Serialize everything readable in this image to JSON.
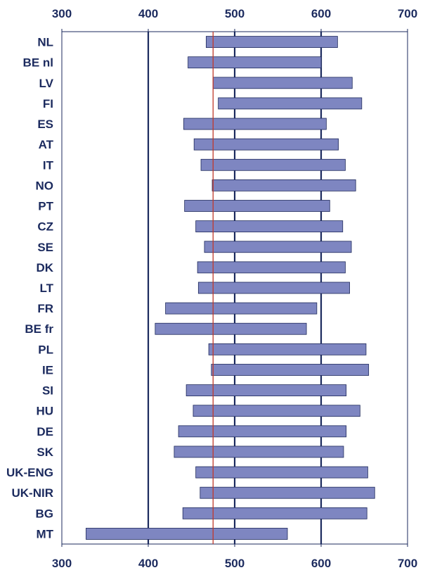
{
  "chart_data": {
    "type": "bar",
    "orientation": "horizontal-range",
    "title": "",
    "xlabel": "",
    "ylabel": "",
    "xlim": [
      300,
      700
    ],
    "xticks": [
      300,
      400,
      500,
      600,
      700
    ],
    "grid": true,
    "reference_line": {
      "value": 475,
      "color": "#c0392b"
    },
    "categories": [
      "NL",
      "BE nl",
      "LV",
      "FI",
      "ES",
      "AT",
      "IT",
      "NO",
      "PT",
      "CZ",
      "SE",
      "DK",
      "LT",
      "FR",
      "BE fr",
      "PL",
      "IE",
      "SI",
      "HU",
      "DE",
      "SK",
      "UK-ENG",
      "UK-NIR",
      "BG",
      "MT"
    ],
    "series": [
      {
        "name": "low",
        "values": [
          467,
          446,
          475,
          481,
          441,
          453,
          461,
          474,
          442,
          455,
          465,
          457,
          458,
          420,
          408,
          470,
          473,
          444,
          452,
          435,
          430,
          455,
          460,
          440,
          328
        ]
      },
      {
        "name": "high",
        "values": [
          619,
          600,
          636,
          647,
          606,
          620,
          628,
          640,
          610,
          625,
          635,
          628,
          633,
          595,
          583,
          652,
          655,
          629,
          645,
          629,
          626,
          654,
          662,
          653,
          561
        ]
      }
    ],
    "colors": {
      "bar_fill": "#7e86c1",
      "bar_stroke": "#1f2a5c",
      "grid": "#1b2a5e",
      "reference": "#c0392b",
      "text": "#1b2a5e"
    }
  }
}
